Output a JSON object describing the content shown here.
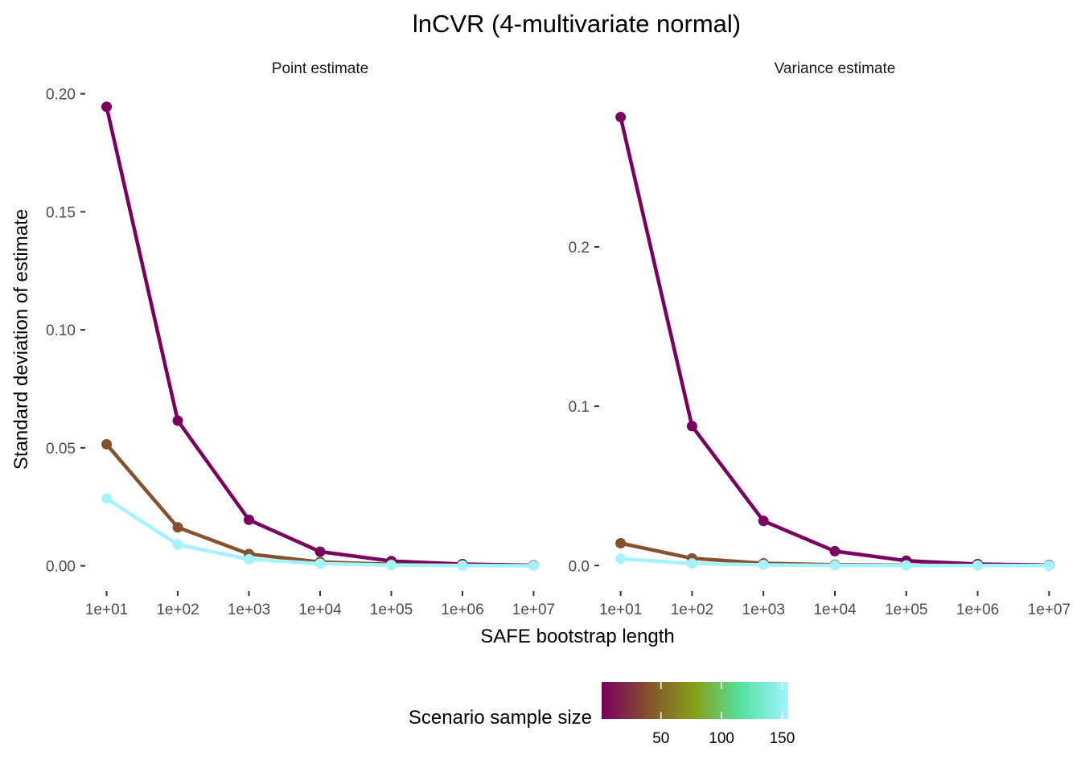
{
  "title": "lnCVR (4-multivariate normal)",
  "xlabel": "SAFE bootstrap length",
  "ylabel": "Standard deviation of estimate",
  "legend": {
    "title": "Scenario sample size",
    "position": "bottom",
    "scale_min": 1,
    "scale_max": 155,
    "ticks": [
      {
        "value": 50,
        "label": "50"
      },
      {
        "value": 100,
        "label": "100"
      },
      {
        "value": 150,
        "label": "150"
      }
    ],
    "colors": [
      "#7a0060",
      "#85522d",
      "#86a11a",
      "#52e2a0",
      "#a4f3ff"
    ]
  },
  "chart_data": [
    {
      "type": "line",
      "panel": "Point estimate",
      "x": [
        10,
        100,
        1000,
        10000,
        100000,
        1000000,
        10000000
      ],
      "x_tick_labels": [
        "1e+01",
        "1e+02",
        "1e+03",
        "1e+04",
        "1e+05",
        "1e+06",
        "1e+07"
      ],
      "x_scale": "log10",
      "ylim": [
        -0.009,
        0.205
      ],
      "y_ticks": [
        {
          "value": 0.0,
          "label": "0.00"
        },
        {
          "value": 0.05,
          "label": "0.05"
        },
        {
          "value": 0.1,
          "label": "0.10"
        },
        {
          "value": 0.15,
          "label": "0.15"
        },
        {
          "value": 0.2,
          "label": "0.20"
        }
      ],
      "grid": false,
      "series": [
        {
          "sample_size": 1,
          "color": "#7a0060",
          "values": [
            0.1945,
            0.0615,
            0.0195,
            0.006,
            0.002,
            0.0007,
            0.0002
          ]
        },
        {
          "sample_size": 50,
          "color": "#85522d",
          "values": [
            0.0515,
            0.0163,
            0.005,
            0.0016,
            0.0006,
            0.0002,
            0.0001
          ]
        },
        {
          "sample_size": 150,
          "color": "#a4f3ff",
          "values": [
            0.0285,
            0.009,
            0.0028,
            0.0009,
            0.0003,
            0.0001,
            0.0
          ]
        }
      ]
    },
    {
      "type": "line",
      "panel": "Variance estimate",
      "x": [
        10,
        100,
        1000,
        10000,
        100000,
        1000000,
        10000000
      ],
      "x_tick_labels": [
        "1e+01",
        "1e+02",
        "1e+03",
        "1e+04",
        "1e+05",
        "1e+06",
        "1e+07"
      ],
      "x_scale": "log10",
      "ylim": [
        -0.0135,
        0.3035
      ],
      "y_ticks": [
        {
          "value": 0.0,
          "label": "0.0"
        },
        {
          "value": 0.1,
          "label": "0.1"
        },
        {
          "value": 0.2,
          "label": "0.2"
        }
      ],
      "grid": false,
      "series": [
        {
          "sample_size": 1,
          "color": "#7a0060",
          "values": [
            0.2815,
            0.0875,
            0.028,
            0.009,
            0.003,
            0.0009,
            0.0003
          ]
        },
        {
          "sample_size": 50,
          "color": "#85522d",
          "values": [
            0.014,
            0.0045,
            0.0014,
            0.0005,
            0.0002,
            0.0001,
            0.0
          ]
        },
        {
          "sample_size": 150,
          "color": "#a4f3ff",
          "values": [
            0.0042,
            0.0013,
            0.0004,
            0.0001,
            0.0,
            0.0,
            0.0
          ]
        }
      ]
    }
  ]
}
